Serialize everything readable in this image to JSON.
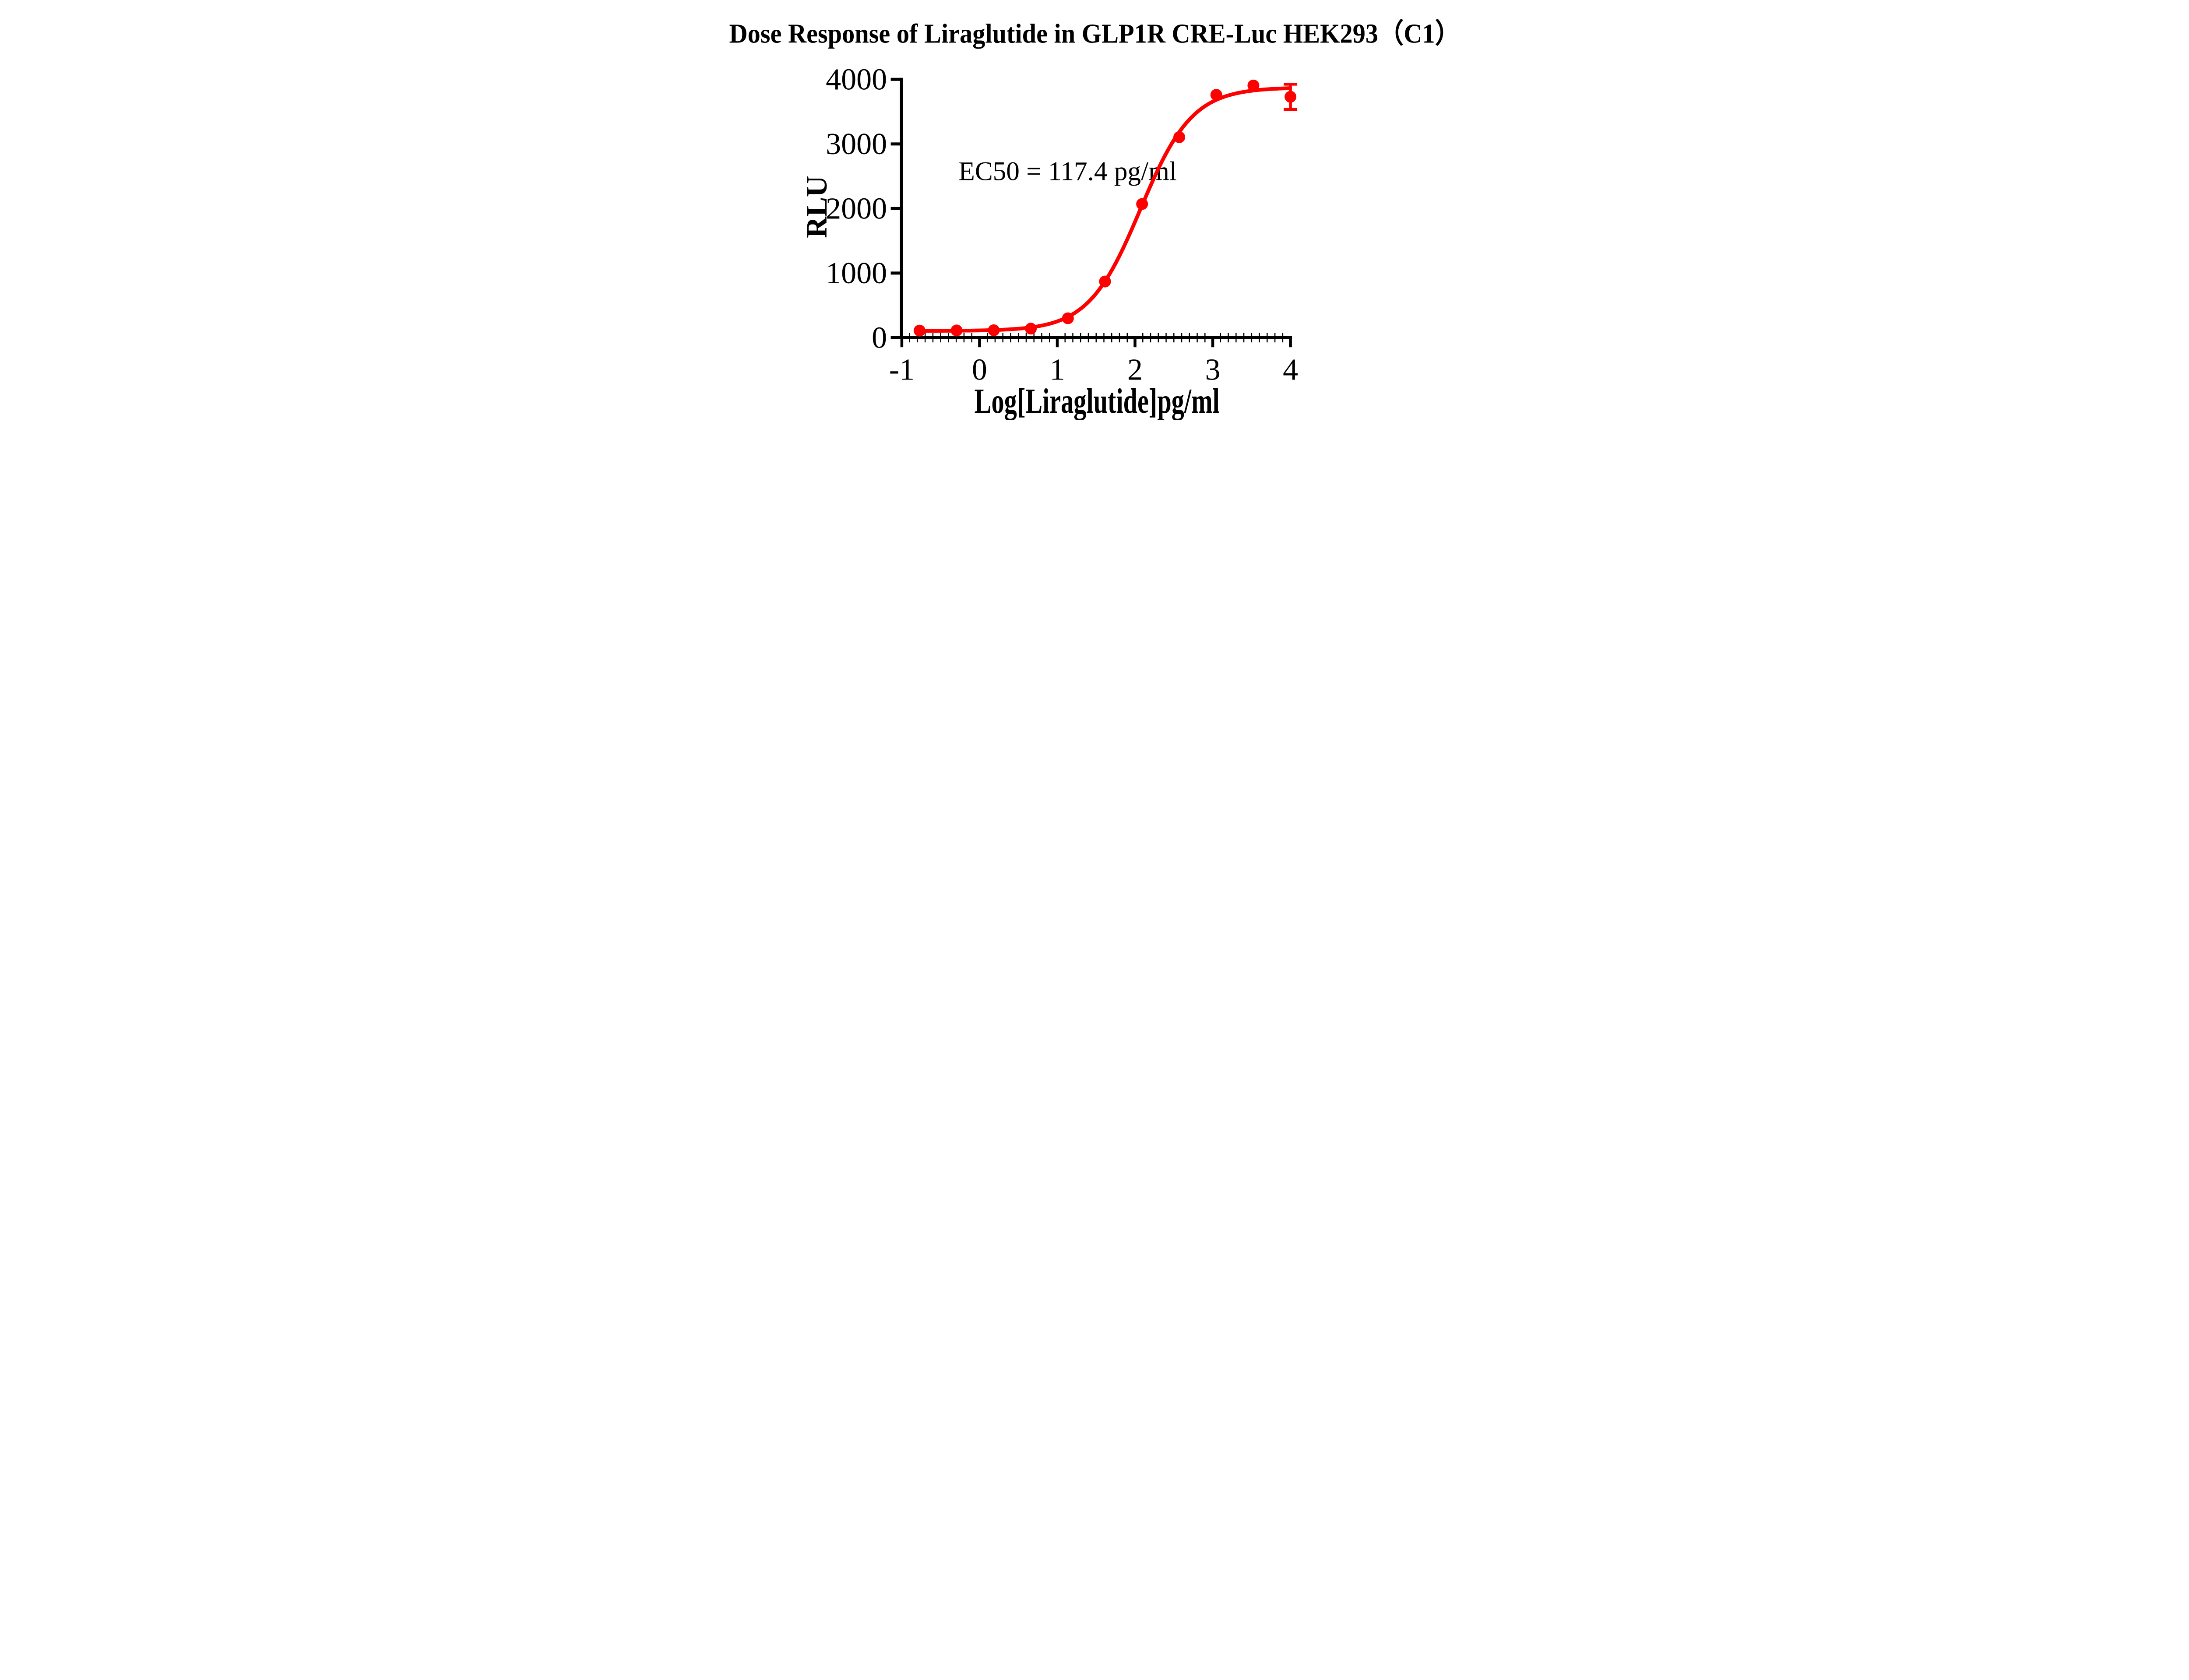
{
  "chart_data": {
    "type": "scatter",
    "title": "Dose Response of Liraglutide in GLP1R CRE-Luc HEK293（C1）",
    "xlabel": "Log[Liraglutide]pg/ml",
    "ylabel": "RLU",
    "annotation": "EC50 = 117.4 pg/ml",
    "ec50_pg_ml": 117.4,
    "xlim": [
      -1,
      4
    ],
    "ylim": [
      0,
      4000
    ],
    "x_ticks": [
      -1,
      0,
      1,
      2,
      3,
      4
    ],
    "x_minor_tick_step": 0.1,
    "y_ticks": [
      0,
      1000,
      2000,
      3000,
      4000
    ],
    "grid": false,
    "legend_position": "none",
    "series": [
      {
        "name": "Liraglutide",
        "marker": "circle",
        "color": "#FF0000",
        "x": [
          -0.772,
          -0.295,
          0.183,
          0.66,
          1.137,
          1.614,
          2.091,
          2.569,
          3.046,
          3.523,
          4.0
        ],
        "y": [
          110,
          112,
          115,
          140,
          300,
          870,
          2070,
          3105,
          3760,
          3905,
          3730
        ],
        "error_bar": {
          "x": 4.0,
          "y": 3730,
          "sd": 195
        }
      }
    ],
    "fit_curve": {
      "model": "four-parameter-logistic",
      "bottom": 105,
      "top": 3875,
      "log_ec50": 2.0697,
      "hill_slope": 1.3,
      "x_range": [
        -0.772,
        4.0
      ]
    }
  },
  "colors": {
    "series": "#FF0000",
    "axis": "#000000",
    "text": "#000000",
    "background": "#FFFFFF"
  }
}
